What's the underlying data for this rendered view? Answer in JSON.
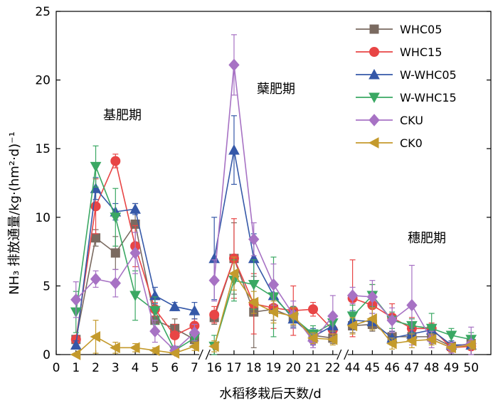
{
  "chart_data": {
    "type": "line",
    "ylabel": "NH₃ 排放通量/kg·(hm²·d)⁻¹",
    "xlabel": "水稻移栽后天数/d",
    "ylim": [
      0,
      25
    ],
    "yticks": [
      0,
      5,
      10,
      15,
      20,
      25
    ],
    "x_segments": [
      [
        0,
        1,
        2,
        3,
        4,
        5,
        6,
        7
      ],
      [
        16,
        17,
        18,
        19,
        20,
        21,
        22
      ],
      [
        44,
        45,
        46,
        47,
        48,
        49,
        50
      ]
    ],
    "x_tick_labels": [
      "0",
      "1",
      "2",
      "3",
      "4",
      "5",
      "6",
      "7",
      "16",
      "17",
      "18",
      "19",
      "20",
      "21",
      "22",
      "44",
      "45",
      "46",
      "47",
      "48",
      "49",
      "50"
    ],
    "axis_break": true,
    "grid": false,
    "legend_position": "top-right",
    "annotations": [
      "基肥期",
      "蘖肥期",
      "穗肥期"
    ],
    "series": [
      {
        "name": "WHC05",
        "color": "#7a6a60",
        "marker": "square",
        "x": [
          1,
          2,
          3,
          4,
          5,
          6,
          7,
          16,
          17,
          18,
          19,
          20,
          21,
          22,
          44,
          45,
          46,
          47,
          48,
          49,
          50
        ],
        "y": [
          1.1,
          8.5,
          7.4,
          9.5,
          2.5,
          1.9,
          1.1,
          2.7,
          7.0,
          3.1,
          3.3,
          2.7,
          1.4,
          1.2,
          2.1,
          2.2,
          1.3,
          1.3,
          1.3,
          0.6,
          0.8
        ],
        "err": [
          0.3,
          0.6,
          1.2,
          1.5,
          0.8,
          0.7,
          0.5,
          0.5,
          2.6,
          2.6,
          0.8,
          0.6,
          0.4,
          0.4,
          0.5,
          0.5,
          0.4,
          0.3,
          0.3,
          0.3,
          0.3
        ]
      },
      {
        "name": "WHC15",
        "color": "#e84545",
        "marker": "circle",
        "x": [
          1,
          2,
          3,
          4,
          5,
          6,
          7,
          16,
          17,
          18,
          19,
          20,
          21,
          22,
          44,
          45,
          46,
          47,
          48,
          49,
          50
        ],
        "y": [
          1.1,
          10.8,
          14.1,
          7.9,
          3.3,
          1.4,
          2.1,
          2.9,
          7.0,
          3.7,
          3.4,
          3.2,
          3.3,
          1.8,
          4.1,
          3.6,
          2.7,
          1.9,
          1.9,
          0.5,
          0.6
        ],
        "err": [
          0.2,
          2.0,
          0.5,
          1.5,
          0.5,
          0.8,
          0.5,
          0.6,
          2.9,
          2.2,
          1.5,
          1.8,
          0.5,
          0.6,
          2.8,
          1.5,
          1.0,
          0.8,
          0.4,
          0.3,
          0.2
        ]
      },
      {
        "name": "W-WHC05",
        "color": "#3558a8",
        "marker": "triangle-up",
        "x": [
          1,
          2,
          3,
          4,
          5,
          6,
          7,
          16,
          17,
          18,
          19,
          20,
          21,
          22,
          44,
          45,
          46,
          47,
          48,
          49,
          50
        ],
        "y": [
          0.7,
          12.1,
          10.4,
          10.6,
          4.3,
          3.5,
          3.2,
          7.0,
          14.9,
          7.0,
          4.3,
          2.6,
          1.3,
          2.1,
          2.5,
          2.4,
          1.2,
          1.5,
          1.8,
          0.7,
          0.7
        ],
        "err": [
          0.3,
          0.8,
          0.6,
          0.4,
          0.6,
          0.3,
          0.6,
          3.0,
          2.5,
          1.8,
          1.0,
          0.6,
          0.6,
          0.5,
          0.7,
          0.6,
          0.5,
          0.4,
          0.4,
          0.3,
          0.3
        ]
      },
      {
        "name": "W-WHC15",
        "color": "#3aa863",
        "marker": "triangle-down",
        "x": [
          1,
          2,
          3,
          4,
          5,
          6,
          7,
          16,
          17,
          18,
          19,
          20,
          21,
          22,
          44,
          45,
          46,
          47,
          48,
          49,
          50
        ],
        "y": [
          3.1,
          13.7,
          10.0,
          4.3,
          3.2,
          0.3,
          1.2,
          0.6,
          5.4,
          5.1,
          4.2,
          2.7,
          1.5,
          2.3,
          2.8,
          4.3,
          2.5,
          2.1,
          1.9,
          1.4,
          1.1
        ],
        "err": [
          1.5,
          1.5,
          2.1,
          1.8,
          1.0,
          0.3,
          0.5,
          0.8,
          1.5,
          1.8,
          2.9,
          0.8,
          0.6,
          0.6,
          0.8,
          0.8,
          0.6,
          0.5,
          1.1,
          0.5,
          0.5
        ]
      },
      {
        "name": "CKU",
        "color": "#a772c4",
        "marker": "diamond",
        "x": [
          1,
          2,
          3,
          4,
          5,
          6,
          7,
          16,
          17,
          18,
          19,
          20,
          21,
          22,
          44,
          45,
          46,
          47,
          48,
          49,
          50
        ],
        "y": [
          4.0,
          5.5,
          5.2,
          7.4,
          1.7,
          0.3,
          1.6,
          5.4,
          21.1,
          8.4,
          5.1,
          2.9,
          1.0,
          2.8,
          4.3,
          4.2,
          2.5,
          3.6,
          1.1,
          0.5,
          0.8
        ],
        "err": [
          1.3,
          0.6,
          1.0,
          1.5,
          0.8,
          0.3,
          0.6,
          1.5,
          2.2,
          1.2,
          1.5,
          1.0,
          0.5,
          1.5,
          0.6,
          1.2,
          0.9,
          2.9,
          0.6,
          0.4,
          1.2
        ]
      },
      {
        "name": "CK0",
        "color": "#c49a2c",
        "marker": "triangle-left",
        "x": [
          1,
          2,
          3,
          4,
          5,
          6,
          7,
          16,
          17,
          18,
          19,
          20,
          21,
          22,
          44,
          45,
          46,
          47,
          48,
          49,
          50
        ],
        "y": [
          0.0,
          1.3,
          0.5,
          0.5,
          0.3,
          0.1,
          0.6,
          0.6,
          5.9,
          3.8,
          3.1,
          2.8,
          1.2,
          1.1,
          2.1,
          2.6,
          0.8,
          1.0,
          1.1,
          0.5,
          0.7
        ],
        "err": [
          0.1,
          1.2,
          0.4,
          0.3,
          0.2,
          0.1,
          0.3,
          0.4,
          1.2,
          0.8,
          0.8,
          0.6,
          0.4,
          0.4,
          0.6,
          0.8,
          0.4,
          0.5,
          0.4,
          0.3,
          0.3
        ]
      }
    ]
  }
}
